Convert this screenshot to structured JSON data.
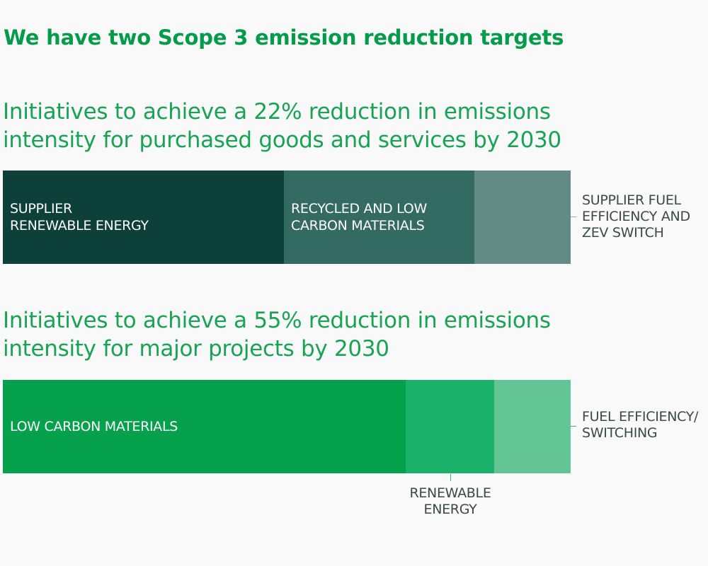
{
  "title": "We have two Scope 3 emission reduction targets",
  "chart_data": [
    {
      "type": "bar",
      "orientation": "horizontal-stacked",
      "title": "Initiatives to achieve a 22% reduction in emissions intensity for purchased goods and services by 2030",
      "categories": [
        "SUPPLIER\nRENEWABLE ENERGY",
        "RECYCLED AND LOW\nCARBON MATERIALS",
        "SUPPLIER FUEL\nEFFICIENCY AND\nZEV SWITCH"
      ],
      "values": [
        49.5,
        33.5,
        17.0
      ],
      "colors": [
        "#0d4039",
        "#336a62",
        "#638b85"
      ]
    },
    {
      "type": "bar",
      "orientation": "horizontal-stacked",
      "title": "Initiatives to achieve a 55% reduction in emissions intensity for major projects by 2030",
      "categories": [
        "LOW CARBON MATERIALS",
        "RENEWABLE\nENERGY",
        "FUEL EFFICIENCY/\nSWITCHING"
      ],
      "values": [
        71.0,
        15.5,
        13.5
      ],
      "colors": [
        "#04a04c",
        "#1ab26a",
        "#63c595"
      ]
    }
  ]
}
